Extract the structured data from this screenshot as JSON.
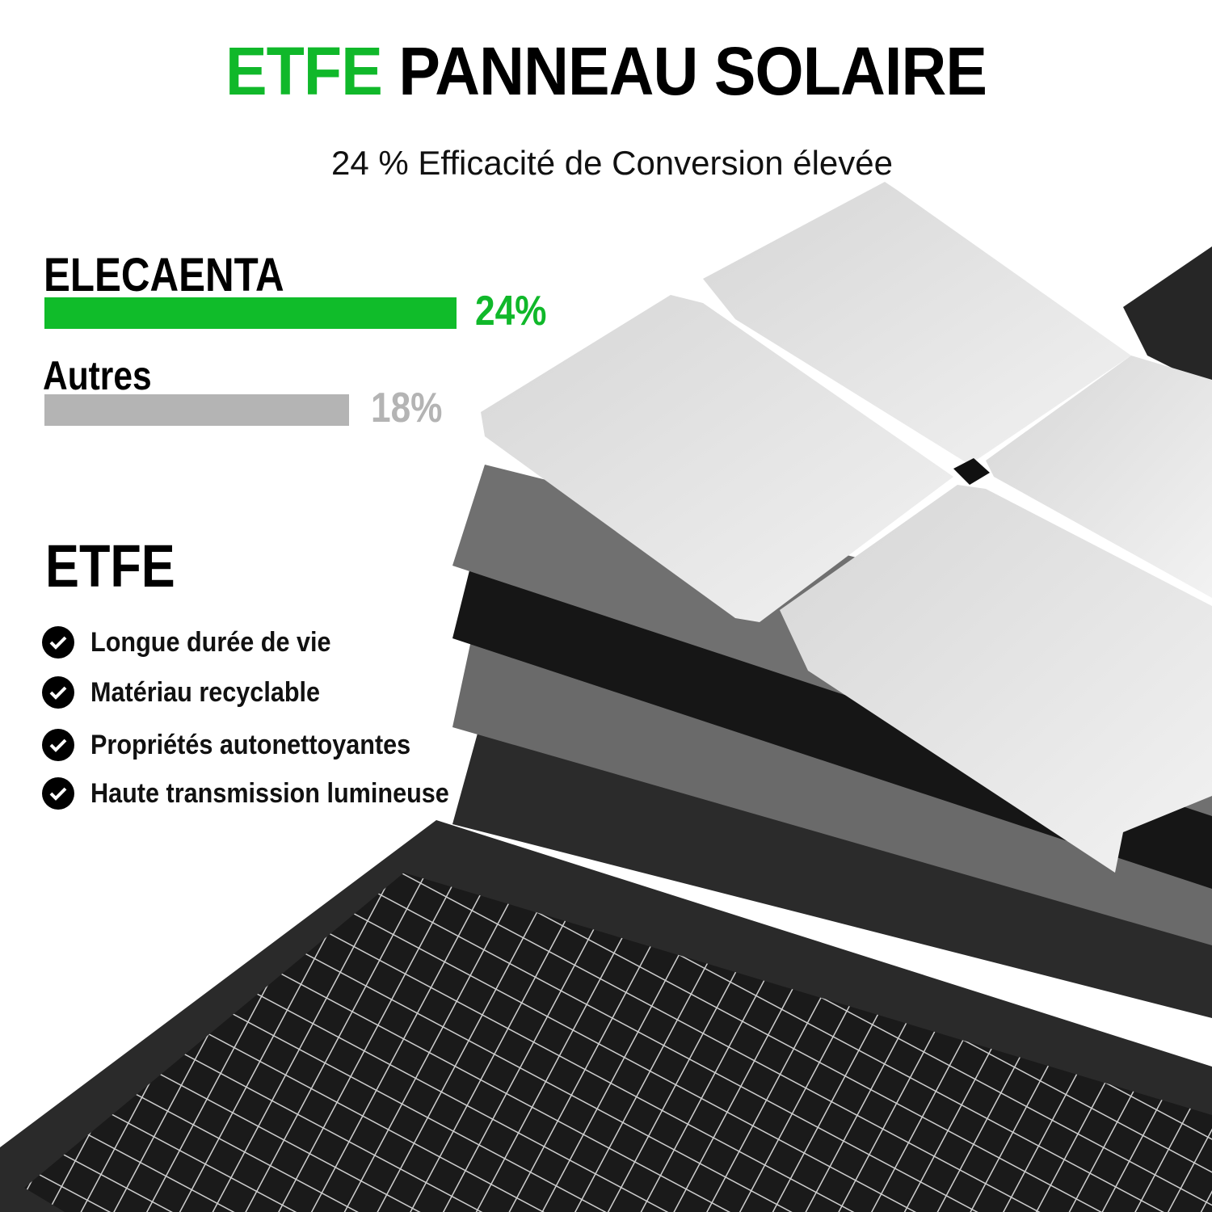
{
  "header": {
    "title_accent": "ETFE",
    "title_rest": "PANNEAU SOLAIRE",
    "subtitle": "24 % Efficacité de Conversion élevée"
  },
  "comparison": {
    "bars": [
      {
        "label": "ELECAENTA",
        "value": "24%",
        "percent": 24,
        "color": "#10bc2a"
      },
      {
        "label": "Autres",
        "value": "18%",
        "percent": 18,
        "color": "#b4b4b4"
      }
    ]
  },
  "features": {
    "heading": "ETFE",
    "items": [
      "Longue durée de vie",
      "Matériau recyclable",
      "Propriétés autonettoyantes",
      "Haute transmission lumineuse"
    ],
    "icon": "check-circle-icon"
  }
}
